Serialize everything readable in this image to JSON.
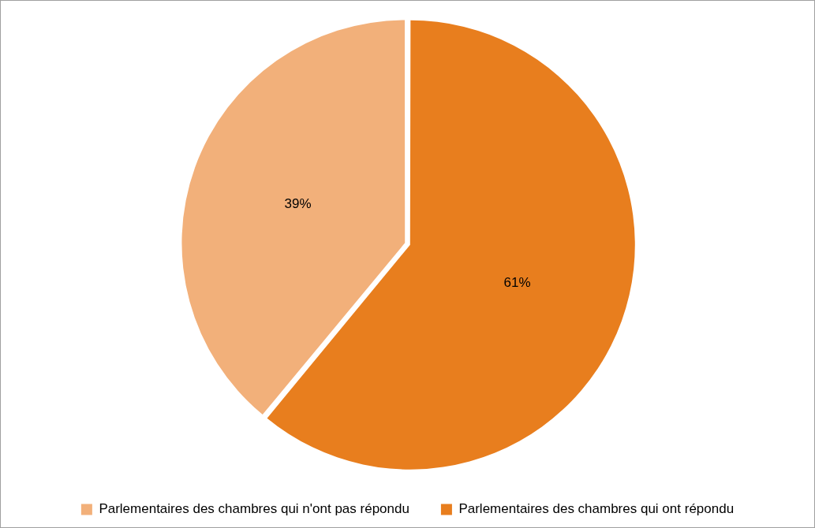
{
  "chart_data": {
    "type": "pie",
    "categories": [
      "Parlementaires des chambres qui n'ont pas répondu",
      "Parlementaires des chambres qui ont répondu"
    ],
    "values": [
      39,
      61
    ],
    "colors": [
      "#f2b07a",
      "#e87e1e"
    ],
    "value_labels": [
      "39%",
      "61%"
    ],
    "legend": "bottom"
  }
}
